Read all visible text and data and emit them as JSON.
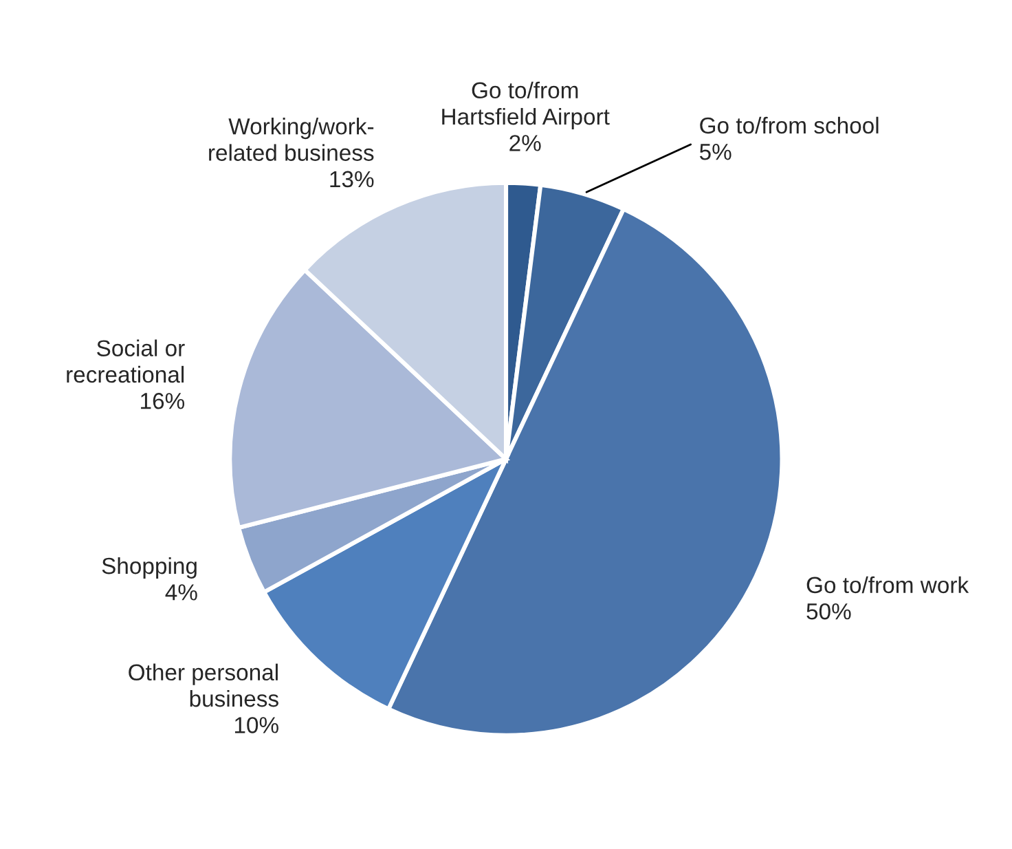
{
  "chart_data": {
    "type": "pie",
    "categories": [
      "Go to/from\nHartsfield Airport",
      "Go to/from school",
      "Go to/from work",
      "Other personal\nbusiness",
      "Shopping",
      "Social or\nrecreational",
      "Working/work-\nrelated business"
    ],
    "values": [
      2,
      5,
      50,
      10,
      4,
      16,
      13
    ],
    "value_labels": [
      "2%",
      "5%",
      "50%",
      "10%",
      "4%",
      "16%",
      "13%"
    ],
    "colors": [
      "#2f5a8f",
      "#3c679c",
      "#4a74ab",
      "#4f80bd",
      "#8ea5cc",
      "#aab9d8",
      "#c5d0e3"
    ]
  }
}
